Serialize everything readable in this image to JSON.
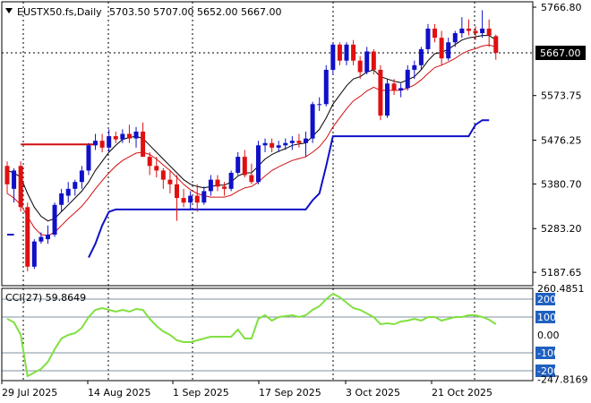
{
  "header": {
    "symbol": "EUSTX50.fs,Daily",
    "ohlc": "5703.50 5707.00 5652.00 5667.00"
  },
  "colors": {
    "bull": "#1010c8",
    "bear": "#e01010",
    "ma_fast": "#000000",
    "ma_slow": "#d01010",
    "stop_low": "#1010c8",
    "stop_high": "#d01010",
    "cci": "#80e040",
    "grid": "#000000",
    "price_tag_bg": "#000000",
    "cci_tag_bg": "#2060c0"
  },
  "price_axis": {
    "labels": [
      "5766.80",
      "5573.75",
      "5476.25",
      "5380.70",
      "5283.20",
      "5187.65"
    ],
    "values": [
      5766.8,
      5573.75,
      5476.25,
      5380.7,
      5283.2,
      5187.65
    ],
    "current": "5667.00",
    "current_value": 5667.0
  },
  "cci_panel": {
    "title": "CCI(27) 59.8649",
    "labels": [
      "260.4851",
      "200",
      "100",
      "0.00",
      "-100",
      "-200",
      "-247.8169"
    ],
    "highlighted": [
      "200",
      "100",
      "-100",
      "-200"
    ]
  },
  "time_axis": {
    "labels": [
      "29 Jul 2025",
      "14 Aug 2025",
      "1 Sep 2025",
      "17 Sep 2025",
      "3 Oct 2025",
      "21 Oct 2025"
    ]
  },
  "chart_data": {
    "type": "candlestick",
    "ylim": [
      5160,
      5780
    ],
    "cci_ylim": [
      -260,
      260
    ],
    "candles": [
      [
        5420,
        5430,
        5360,
        5380
      ],
      [
        5370,
        5415,
        5340,
        5410
      ],
      [
        5420,
        5430,
        5320,
        5330
      ],
      [
        5330,
        5340,
        5190,
        5200
      ],
      [
        5200,
        5260,
        5195,
        5255
      ],
      [
        5255,
        5275,
        5250,
        5265
      ],
      [
        5260,
        5290,
        5250,
        5270
      ],
      [
        5270,
        5340,
        5265,
        5335
      ],
      [
        5335,
        5370,
        5320,
        5360
      ],
      [
        5355,
        5385,
        5340,
        5370
      ],
      [
        5370,
        5390,
        5355,
        5385
      ],
      [
        5385,
        5420,
        5370,
        5410
      ],
      [
        5410,
        5470,
        5400,
        5465
      ],
      [
        5465,
        5490,
        5455,
        5475
      ],
      [
        5475,
        5490,
        5450,
        5460
      ],
      [
        5460,
        5500,
        5450,
        5485
      ],
      [
        5485,
        5495,
        5470,
        5478
      ],
      [
        5478,
        5500,
        5470,
        5490
      ],
      [
        5490,
        5510,
        5470,
        5480
      ],
      [
        5480,
        5505,
        5460,
        5495
      ],
      [
        5495,
        5515,
        5440,
        5440
      ],
      [
        5440,
        5450,
        5400,
        5420
      ],
      [
        5420,
        5440,
        5395,
        5410
      ],
      [
        5410,
        5415,
        5370,
        5390
      ],
      [
        5390,
        5410,
        5360,
        5380
      ],
      [
        5380,
        5400,
        5300,
        5350
      ],
      [
        5350,
        5370,
        5330,
        5340
      ],
      [
        5340,
        5365,
        5325,
        5355
      ],
      [
        5355,
        5380,
        5320,
        5340
      ],
      [
        5340,
        5375,
        5335,
        5365
      ],
      [
        5365,
        5400,
        5355,
        5390
      ],
      [
        5390,
        5400,
        5365,
        5375
      ],
      [
        5375,
        5385,
        5355,
        5370
      ],
      [
        5370,
        5410,
        5365,
        5405
      ],
      [
        5405,
        5450,
        5400,
        5440
      ],
      [
        5440,
        5455,
        5395,
        5400
      ],
      [
        5400,
        5425,
        5380,
        5385
      ],
      [
        5385,
        5475,
        5380,
        5465
      ],
      [
        5465,
        5480,
        5450,
        5470
      ],
      [
        5470,
        5480,
        5450,
        5460
      ],
      [
        5460,
        5475,
        5450,
        5465
      ],
      [
        5465,
        5480,
        5455,
        5470
      ],
      [
        5470,
        5485,
        5455,
        5475
      ],
      [
        5475,
        5490,
        5460,
        5470
      ],
      [
        5470,
        5495,
        5440,
        5480
      ],
      [
        5480,
        5560,
        5470,
        5555
      ],
      [
        5555,
        5570,
        5540,
        5555
      ],
      [
        5555,
        5640,
        5550,
        5630
      ],
      [
        5630,
        5690,
        5620,
        5685
      ],
      [
        5685,
        5690,
        5640,
        5650
      ],
      [
        5650,
        5690,
        5640,
        5685
      ],
      [
        5685,
        5695,
        5640,
        5650
      ],
      [
        5650,
        5660,
        5610,
        5625
      ],
      [
        5625,
        5680,
        5620,
        5670
      ],
      [
        5670,
        5675,
        5620,
        5630
      ],
      [
        5630,
        5640,
        5520,
        5530
      ],
      [
        5530,
        5610,
        5525,
        5600
      ],
      [
        5600,
        5610,
        5575,
        5585
      ],
      [
        5585,
        5600,
        5570,
        5590
      ],
      [
        5590,
        5640,
        5585,
        5630
      ],
      [
        5630,
        5650,
        5610,
        5640
      ],
      [
        5640,
        5680,
        5630,
        5675
      ],
      [
        5675,
        5730,
        5665,
        5720
      ],
      [
        5720,
        5730,
        5690,
        5700
      ],
      [
        5700,
        5715,
        5640,
        5655
      ],
      [
        5655,
        5700,
        5650,
        5690
      ],
      [
        5690,
        5715,
        5680,
        5710
      ],
      [
        5710,
        5745,
        5700,
        5720
      ],
      [
        5720,
        5740,
        5705,
        5715
      ],
      [
        5715,
        5725,
        5695,
        5710
      ],
      [
        5710,
        5760,
        5700,
        5720
      ],
      [
        5720,
        5740,
        5680,
        5705
      ],
      [
        5703.5,
        5707,
        5652,
        5667
      ]
    ],
    "ma_fast": [
      5410,
      5405,
      5395,
      5360,
      5330,
      5310,
      5300,
      5305,
      5320,
      5335,
      5350,
      5365,
      5385,
      5410,
      5430,
      5450,
      5465,
      5478,
      5482,
      5485,
      5480,
      5465,
      5450,
      5435,
      5420,
      5405,
      5390,
      5380,
      5375,
      5372,
      5375,
      5378,
      5378,
      5385,
      5398,
      5405,
      5405,
      5420,
      5435,
      5445,
      5452,
      5458,
      5465,
      5468,
      5470,
      5485,
      5500,
      5525,
      5555,
      5575,
      5595,
      5610,
      5615,
      5625,
      5630,
      5615,
      5610,
      5605,
      5602,
      5608,
      5615,
      5630,
      5650,
      5665,
      5668,
      5675,
      5685,
      5695,
      5700,
      5702,
      5705,
      5705,
      5695
    ],
    "ma_slow": [
      5360,
      5350,
      5335,
      5310,
      5285,
      5270,
      5268,
      5275,
      5290,
      5305,
      5318,
      5332,
      5350,
      5370,
      5388,
      5405,
      5420,
      5432,
      5440,
      5448,
      5450,
      5445,
      5435,
      5422,
      5410,
      5395,
      5380,
      5368,
      5360,
      5355,
      5352,
      5352,
      5352,
      5356,
      5365,
      5372,
      5375,
      5385,
      5398,
      5410,
      5418,
      5425,
      5432,
      5436,
      5440,
      5450,
      5462,
      5480,
      5505,
      5525,
      5545,
      5562,
      5572,
      5584,
      5592,
      5585,
      5585,
      5585,
      5585,
      5590,
      5597,
      5608,
      5622,
      5635,
      5640,
      5647,
      5655,
      5665,
      5672,
      5676,
      5682,
      5684,
      5680
    ],
    "stop_high": [
      [
        2,
        5467
      ],
      [
        3,
        5467
      ],
      [
        4,
        5467
      ],
      [
        5,
        5467
      ],
      [
        6,
        5467
      ],
      [
        7,
        5467
      ],
      [
        8,
        5467
      ],
      [
        9,
        5467
      ],
      [
        10,
        5467
      ],
      [
        11,
        5467
      ],
      [
        12,
        5467
      ],
      [
        13,
        5467
      ]
    ],
    "stop_low": [
      [
        0,
        5270
      ],
      [
        1,
        5270
      ],
      [
        12,
        5220
      ],
      [
        13,
        5250
      ],
      [
        14,
        5290
      ],
      [
        15,
        5320
      ],
      [
        16,
        5325
      ],
      [
        17,
        5325
      ],
      [
        18,
        5325
      ],
      [
        19,
        5325
      ],
      [
        20,
        5325
      ],
      [
        21,
        5325
      ],
      [
        22,
        5325
      ],
      [
        23,
        5325
      ],
      [
        24,
        5325
      ],
      [
        25,
        5325
      ],
      [
        26,
        5325
      ],
      [
        27,
        5325
      ],
      [
        28,
        5325
      ],
      [
        29,
        5325
      ],
      [
        30,
        5325
      ],
      [
        31,
        5325
      ],
      [
        32,
        5325
      ],
      [
        33,
        5325
      ],
      [
        34,
        5325
      ],
      [
        35,
        5325
      ],
      [
        36,
        5325
      ],
      [
        37,
        5325
      ],
      [
        38,
        5325
      ],
      [
        39,
        5325
      ],
      [
        40,
        5325
      ],
      [
        41,
        5325
      ],
      [
        42,
        5325
      ],
      [
        43,
        5325
      ],
      [
        44,
        5325
      ],
      [
        45,
        5345
      ],
      [
        46,
        5360
      ],
      [
        47,
        5420
      ],
      [
        48,
        5485
      ],
      [
        49,
        5485
      ],
      [
        50,
        5485
      ],
      [
        51,
        5485
      ],
      [
        52,
        5485
      ],
      [
        53,
        5485
      ],
      [
        54,
        5485
      ],
      [
        55,
        5485
      ],
      [
        56,
        5485
      ],
      [
        57,
        5485
      ],
      [
        58,
        5485
      ],
      [
        59,
        5485
      ],
      [
        60,
        5485
      ],
      [
        61,
        5485
      ],
      [
        62,
        5485
      ],
      [
        63,
        5485
      ],
      [
        64,
        5485
      ],
      [
        65,
        5485
      ],
      [
        66,
        5485
      ],
      [
        67,
        5485
      ],
      [
        68,
        5485
      ],
      [
        69,
        5510
      ],
      [
        70,
        5520
      ],
      [
        71,
        5520
      ]
    ],
    "cci": [
      90,
      70,
      0,
      -230,
      -210,
      -190,
      -150,
      -80,
      -20,
      0,
      10,
      40,
      100,
      140,
      150,
      140,
      130,
      140,
      130,
      145,
      140,
      90,
      50,
      20,
      0,
      -30,
      -40,
      -40,
      -30,
      -20,
      -10,
      -10,
      -10,
      -10,
      30,
      -20,
      -20,
      90,
      110,
      80,
      100,
      105,
      110,
      100,
      110,
      140,
      160,
      200,
      230,
      210,
      180,
      150,
      140,
      120,
      100,
      60,
      65,
      60,
      75,
      80,
      90,
      80,
      100,
      100,
      80,
      90,
      100,
      100,
      110,
      110,
      100,
      85,
      60
    ]
  }
}
